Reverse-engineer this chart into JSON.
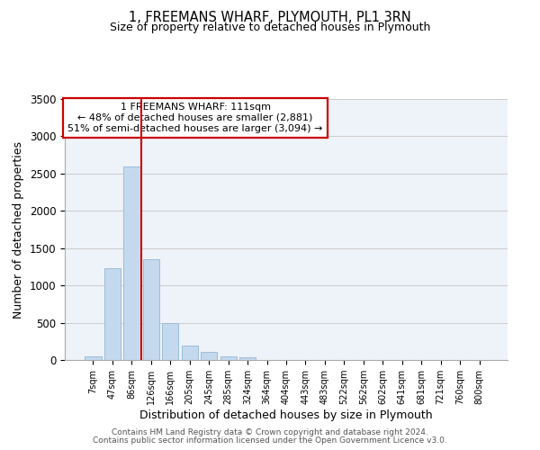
{
  "title": "1, FREEMANS WHARF, PLYMOUTH, PL1 3RN",
  "subtitle": "Size of property relative to detached houses in Plymouth",
  "xlabel": "Distribution of detached houses by size in Plymouth",
  "ylabel": "Number of detached properties",
  "bar_labels": [
    "7sqm",
    "47sqm",
    "86sqm",
    "126sqm",
    "166sqm",
    "205sqm",
    "245sqm",
    "285sqm",
    "324sqm",
    "364sqm",
    "404sqm",
    "443sqm",
    "483sqm",
    "522sqm",
    "562sqm",
    "602sqm",
    "641sqm",
    "681sqm",
    "721sqm",
    "760sqm",
    "800sqm"
  ],
  "bar_values": [
    50,
    1230,
    2590,
    1350,
    500,
    195,
    110,
    45,
    40,
    0,
    0,
    0,
    0,
    0,
    0,
    0,
    0,
    0,
    0,
    0,
    0
  ],
  "bar_color": "#c5d9ee",
  "bar_edgecolor": "#9bbcd8",
  "vline_x": 2.5,
  "vline_color": "#cc0000",
  "annotation_text": "1 FREEMANS WHARF: 111sqm\n← 48% of detached houses are smaller (2,881)\n51% of semi-detached houses are larger (3,094) →",
  "annotation_box_edgecolor": "#cc0000",
  "annotation_box_facecolor": "#ffffff",
  "ylim": [
    0,
    3500
  ],
  "yticks": [
    0,
    500,
    1000,
    1500,
    2000,
    2500,
    3000,
    3500
  ],
  "grid_color": "#cccccc",
  "background_color": "#eef2f9",
  "footer1": "Contains HM Land Registry data © Crown copyright and database right 2024.",
  "footer2": "Contains public sector information licensed under the Open Government Licence v3.0."
}
